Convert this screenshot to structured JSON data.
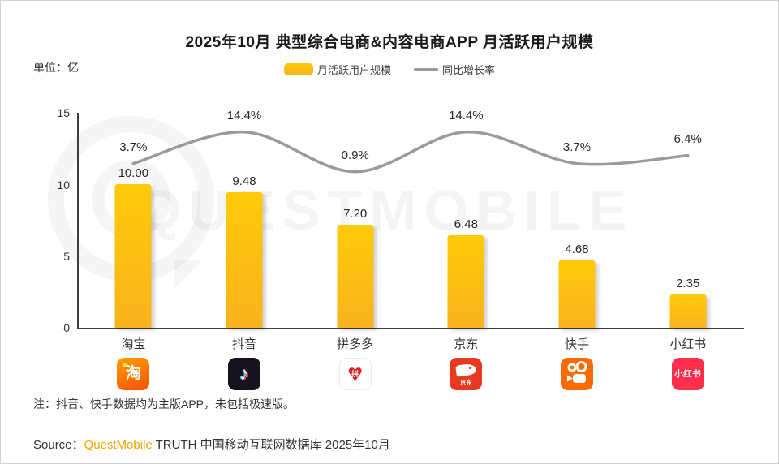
{
  "title": "2025年10月 典型综合电商&内容电商APP 月活跃用户规模",
  "unit_label": "单位：亿",
  "legend": {
    "bar_label": "月活跃用户规模",
    "line_label": "同比增长率"
  },
  "watermark": "QUESTMOBILE",
  "note": "注：抖音、快手数据均为主版APP，未包括极速版。",
  "source": {
    "prefix": "Source：",
    "brand": "QuestMobile",
    "rest": " TRUTH 中国移动互联网数据库 2025年10月"
  },
  "colors": {
    "bar_top": "#FFCA08",
    "bar_bottom": "#F9B31E",
    "line": "#9A9A9A",
    "axis": "#3d3d3d",
    "brand_orange": "#F7A600"
  },
  "icons": {
    "taobao_char": "淘",
    "douyin_note": "♪",
    "pdd_heart": "♥",
    "pdd_char": "拼",
    "jd_text": "京东",
    "xhs_text": "小红书"
  },
  "chart_data": {
    "type": "bar+line",
    "title": "2025年10月 典型综合电商&内容电商APP 月活跃用户规模",
    "unit": "亿",
    "categories": [
      "淘宝",
      "抖音",
      "拼多多",
      "京东",
      "快手",
      "小红书"
    ],
    "series": [
      {
        "name": "月活跃用户规模",
        "type": "bar",
        "values": [
          10.0,
          9.48,
          7.2,
          6.48,
          4.68,
          2.35
        ],
        "labels": [
          "10.00",
          "9.48",
          "7.20",
          "6.48",
          "4.68",
          "2.35"
        ]
      },
      {
        "name": "同比增长率",
        "type": "line",
        "values": [
          3.7,
          14.4,
          0.9,
          14.4,
          3.7,
          6.4
        ],
        "labels": [
          "3.7%",
          "14.4%",
          "0.9%",
          "14.4%",
          "3.7%",
          "6.4%"
        ]
      }
    ],
    "y_axis": {
      "ticks": [
        15,
        10,
        5,
        0
      ],
      "tick_labels": [
        "15",
        "10",
        "5",
        "0"
      ],
      "max": 15
    },
    "legend_position": "top-center",
    "grid": false
  }
}
